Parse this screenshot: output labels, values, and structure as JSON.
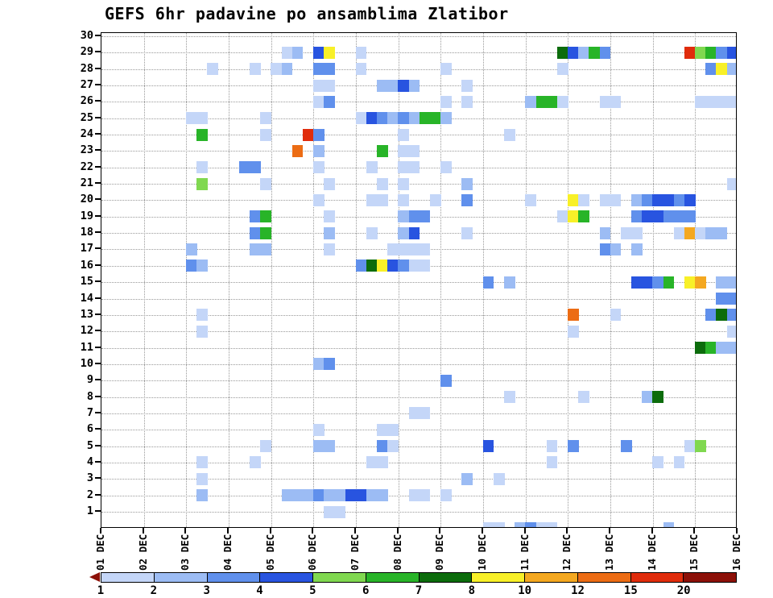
{
  "title": "GEFS 6hr padavine po ansamblima Zlatibor",
  "chart_data": {
    "type": "heatmap",
    "title": "GEFS 6hr padavine po ansamblima Zlatibor",
    "x_tick_labels": [
      "01 DEC",
      "02 DEC",
      "03 DEC",
      "04 DEC",
      "05 DEC",
      "06 DEC",
      "07 DEC",
      "08 DEC",
      "09 DEC",
      "10 DEC",
      "11 DEC",
      "12 DEC",
      "13 DEC",
      "14 DEC",
      "15 DEC",
      "16 DEC"
    ],
    "x_steps_per_day": 4,
    "y_tick_labels": [
      "1",
      "2",
      "3",
      "4",
      "5",
      "6",
      "7",
      "8",
      "9",
      "10",
      "11",
      "12",
      "13",
      "14",
      "15",
      "16",
      "17",
      "18",
      "19",
      "20",
      "21",
      "22",
      "23",
      "24",
      "25",
      "26",
      "27",
      "28",
      "29",
      "30"
    ],
    "y_range": [
      1,
      30
    ],
    "grid": "dotted",
    "legend": {
      "values": [
        "1",
        "2",
        "3",
        "4",
        "5",
        "6",
        "7",
        "8",
        "10",
        "12",
        "15",
        "20"
      ],
      "colors": [
        "#c4d6f8",
        "#9cbcf4",
        "#6090ec",
        "#2854e0",
        "#80d850",
        "#28b428",
        "#0c6c0c",
        "#f8f028",
        "#f4a820",
        "#ec6c14",
        "#e02c0c",
        "#8c1008"
      ],
      "left_cap_color": "#8c1008",
      "position": "bottom"
    },
    "value_colors": {
      "1": "#c4d6f8",
      "2": "#9cbcf4",
      "3": "#6090ec",
      "4": "#2854e0",
      "5": "#80d850",
      "6": "#28b428",
      "7": "#0c6c0c",
      "8": "#f8f028",
      "10": "#f4a820",
      "12": "#ec6c14",
      "15": "#e02c0c",
      "20": "#8c1008"
    },
    "cells_format": "[ensemble_member_row, six_hour_step_col, precip_level_mm]",
    "cells": [
      [
        0,
        36,
        1
      ],
      [
        0,
        37,
        1
      ],
      [
        0,
        39,
        2
      ],
      [
        0,
        40,
        3
      ],
      [
        0,
        41,
        1
      ],
      [
        0,
        42,
        1
      ],
      [
        0,
        53,
        2
      ],
      [
        1,
        21,
        1
      ],
      [
        1,
        22,
        1
      ],
      [
        2,
        9,
        2
      ],
      [
        2,
        17,
        2
      ],
      [
        2,
        18,
        2
      ],
      [
        2,
        19,
        2
      ],
      [
        2,
        20,
        3
      ],
      [
        2,
        21,
        2
      ],
      [
        2,
        22,
        2
      ],
      [
        2,
        23,
        4
      ],
      [
        2,
        24,
        4
      ],
      [
        2,
        25,
        2
      ],
      [
        2,
        26,
        2
      ],
      [
        2,
        29,
        1
      ],
      [
        2,
        30,
        1
      ],
      [
        2,
        32,
        1
      ],
      [
        3,
        9,
        1
      ],
      [
        3,
        34,
        2
      ],
      [
        3,
        37,
        1
      ],
      [
        4,
        9,
        1
      ],
      [
        4,
        14,
        1
      ],
      [
        4,
        25,
        1
      ],
      [
        4,
        26,
        1
      ],
      [
        4,
        42,
        1
      ],
      [
        4,
        52,
        1
      ],
      [
        4,
        54,
        1
      ],
      [
        5,
        15,
        1
      ],
      [
        5,
        20,
        2
      ],
      [
        5,
        21,
        2
      ],
      [
        5,
        26,
        3
      ],
      [
        5,
        27,
        1
      ],
      [
        5,
        36,
        4
      ],
      [
        5,
        42,
        1
      ],
      [
        5,
        44,
        3
      ],
      [
        5,
        49,
        3
      ],
      [
        5,
        55,
        1
      ],
      [
        5,
        56,
        5
      ],
      [
        6,
        20,
        1
      ],
      [
        6,
        26,
        1
      ],
      [
        6,
        27,
        1
      ],
      [
        7,
        29,
        1
      ],
      [
        7,
        30,
        1
      ],
      [
        8,
        38,
        1
      ],
      [
        8,
        45,
        1
      ],
      [
        8,
        51,
        2
      ],
      [
        8,
        52,
        7
      ],
      [
        9,
        32,
        3
      ],
      [
        10,
        20,
        2
      ],
      [
        10,
        21,
        3
      ],
      [
        11,
        56,
        7
      ],
      [
        11,
        57,
        6
      ],
      [
        11,
        58,
        2
      ],
      [
        11,
        59,
        2
      ],
      [
        12,
        9,
        1
      ],
      [
        12,
        44,
        1
      ],
      [
        12,
        59,
        1
      ],
      [
        13,
        9,
        1
      ],
      [
        13,
        44,
        12
      ],
      [
        13,
        48,
        1
      ],
      [
        13,
        57,
        3
      ],
      [
        13,
        58,
        7
      ],
      [
        13,
        59,
        3
      ],
      [
        14,
        58,
        3
      ],
      [
        14,
        59,
        3
      ],
      [
        15,
        36,
        3
      ],
      [
        15,
        38,
        2
      ],
      [
        15,
        50,
        4
      ],
      [
        15,
        51,
        4
      ],
      [
        15,
        52,
        3
      ],
      [
        15,
        53,
        6
      ],
      [
        15,
        55,
        8
      ],
      [
        15,
        56,
        10
      ],
      [
        15,
        58,
        2
      ],
      [
        15,
        59,
        2
      ],
      [
        16,
        8,
        3
      ],
      [
        16,
        9,
        2
      ],
      [
        16,
        24,
        3
      ],
      [
        16,
        25,
        7
      ],
      [
        16,
        26,
        8
      ],
      [
        16,
        27,
        4
      ],
      [
        16,
        28,
        3
      ],
      [
        16,
        29,
        1
      ],
      [
        16,
        30,
        1
      ],
      [
        17,
        8,
        2
      ],
      [
        17,
        14,
        2
      ],
      [
        17,
        15,
        2
      ],
      [
        17,
        21,
        1
      ],
      [
        17,
        27,
        1
      ],
      [
        17,
        28,
        1
      ],
      [
        17,
        29,
        1
      ],
      [
        17,
        30,
        1
      ],
      [
        17,
        47,
        3
      ],
      [
        17,
        48,
        2
      ],
      [
        17,
        50,
        2
      ],
      [
        18,
        14,
        3
      ],
      [
        18,
        15,
        6
      ],
      [
        18,
        21,
        2
      ],
      [
        18,
        25,
        1
      ],
      [
        18,
        28,
        2
      ],
      [
        18,
        29,
        4
      ],
      [
        18,
        34,
        1
      ],
      [
        18,
        47,
        2
      ],
      [
        18,
        49,
        1
      ],
      [
        18,
        50,
        1
      ],
      [
        18,
        54,
        1
      ],
      [
        18,
        55,
        10
      ],
      [
        18,
        56,
        1
      ],
      [
        18,
        57,
        2
      ],
      [
        18,
        58,
        2
      ],
      [
        19,
        14,
        3
      ],
      [
        19,
        15,
        6
      ],
      [
        19,
        21,
        1
      ],
      [
        19,
        28,
        2
      ],
      [
        19,
        29,
        3
      ],
      [
        19,
        30,
        3
      ],
      [
        19,
        43,
        1
      ],
      [
        19,
        44,
        8
      ],
      [
        19,
        45,
        6
      ],
      [
        19,
        50,
        3
      ],
      [
        19,
        51,
        4
      ],
      [
        19,
        52,
        4
      ],
      [
        19,
        53,
        3
      ],
      [
        19,
        54,
        3
      ],
      [
        19,
        55,
        3
      ],
      [
        20,
        20,
        1
      ],
      [
        20,
        25,
        1
      ],
      [
        20,
        26,
        1
      ],
      [
        20,
        28,
        1
      ],
      [
        20,
        31,
        1
      ],
      [
        20,
        34,
        3
      ],
      [
        20,
        40,
        1
      ],
      [
        20,
        44,
        8
      ],
      [
        20,
        45,
        1
      ],
      [
        20,
        47,
        1
      ],
      [
        20,
        48,
        1
      ],
      [
        20,
        50,
        2
      ],
      [
        20,
        51,
        3
      ],
      [
        20,
        52,
        4
      ],
      [
        20,
        53,
        4
      ],
      [
        20,
        54,
        3
      ],
      [
        20,
        55,
        4
      ],
      [
        21,
        9,
        5
      ],
      [
        21,
        15,
        1
      ],
      [
        21,
        21,
        1
      ],
      [
        21,
        26,
        1
      ],
      [
        21,
        28,
        1
      ],
      [
        21,
        34,
        2
      ],
      [
        21,
        59,
        1
      ],
      [
        22,
        9,
        1
      ],
      [
        22,
        13,
        3
      ],
      [
        22,
        14,
        3
      ],
      [
        22,
        20,
        1
      ],
      [
        22,
        25,
        1
      ],
      [
        22,
        28,
        1
      ],
      [
        22,
        29,
        1
      ],
      [
        22,
        32,
        1
      ],
      [
        23,
        18,
        12
      ],
      [
        23,
        20,
        2
      ],
      [
        23,
        26,
        6
      ],
      [
        23,
        28,
        1
      ],
      [
        23,
        29,
        1
      ],
      [
        24,
        9,
        6
      ],
      [
        24,
        15,
        1
      ],
      [
        24,
        19,
        15
      ],
      [
        24,
        20,
        3
      ],
      [
        24,
        28,
        1
      ],
      [
        24,
        38,
        1
      ],
      [
        25,
        8,
        1
      ],
      [
        25,
        9,
        1
      ],
      [
        25,
        15,
        1
      ],
      [
        25,
        24,
        1
      ],
      [
        25,
        25,
        4
      ],
      [
        25,
        26,
        3
      ],
      [
        25,
        27,
        2
      ],
      [
        25,
        28,
        3
      ],
      [
        25,
        29,
        2
      ],
      [
        25,
        30,
        6
      ],
      [
        25,
        31,
        6
      ],
      [
        25,
        32,
        2
      ],
      [
        26,
        20,
        1
      ],
      [
        26,
        21,
        3
      ],
      [
        26,
        32,
        1
      ],
      [
        26,
        34,
        1
      ],
      [
        26,
        40,
        2
      ],
      [
        26,
        41,
        6
      ],
      [
        26,
        42,
        6
      ],
      [
        26,
        43,
        1
      ],
      [
        26,
        47,
        1
      ],
      [
        26,
        48,
        1
      ],
      [
        26,
        56,
        1
      ],
      [
        26,
        57,
        1
      ],
      [
        26,
        58,
        1
      ],
      [
        26,
        59,
        1
      ],
      [
        27,
        20,
        1
      ],
      [
        27,
        21,
        1
      ],
      [
        27,
        26,
        2
      ],
      [
        27,
        27,
        2
      ],
      [
        27,
        28,
        4
      ],
      [
        27,
        29,
        2
      ],
      [
        27,
        34,
        1
      ],
      [
        28,
        10,
        1
      ],
      [
        28,
        14,
        1
      ],
      [
        28,
        16,
        1
      ],
      [
        28,
        17,
        2
      ],
      [
        28,
        20,
        3
      ],
      [
        28,
        21,
        3
      ],
      [
        28,
        24,
        1
      ],
      [
        28,
        32,
        1
      ],
      [
        28,
        43,
        1
      ],
      [
        28,
        57,
        3
      ],
      [
        28,
        58,
        8
      ],
      [
        28,
        59,
        2
      ],
      [
        29,
        17,
        1
      ],
      [
        29,
        18,
        2
      ],
      [
        29,
        20,
        4
      ],
      [
        29,
        21,
        8
      ],
      [
        29,
        24,
        1
      ],
      [
        29,
        43,
        7
      ],
      [
        29,
        44,
        4
      ],
      [
        29,
        45,
        2
      ],
      [
        29,
        46,
        6
      ],
      [
        29,
        47,
        3
      ],
      [
        29,
        55,
        15
      ],
      [
        29,
        56,
        5
      ],
      [
        29,
        57,
        6
      ],
      [
        29,
        58,
        3
      ],
      [
        29,
        59,
        4
      ]
    ]
  }
}
